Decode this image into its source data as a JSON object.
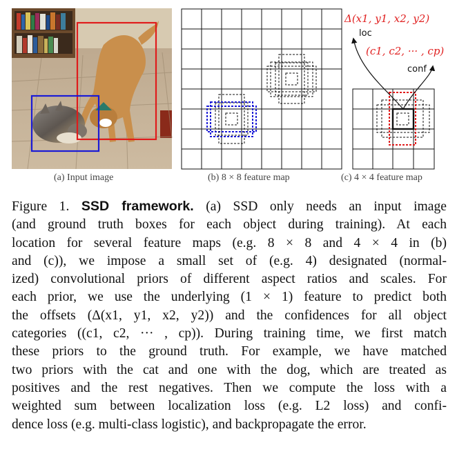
{
  "subfigures": {
    "a_caption": "(a) Input image",
    "b_caption": "(b) 8 × 8 feature map",
    "c_caption": "(c) 4 × 4 feature map"
  },
  "annotations": {
    "offsets": "Δ(x1, y1, x2, y2)",
    "loc": "loc",
    "confidences": "(c1, c2, ··· , cp)",
    "conf": "conf"
  },
  "colors": {
    "ground_truth_cat": "#1a1ad6",
    "ground_truth_dog": "#e01b1b",
    "math_red": "#e02020"
  },
  "grids": {
    "b_cells": 8,
    "c_cells": 4
  },
  "caption": {
    "label": "Figure 1.",
    "title": "SSD framework.",
    "lines": [
      "(a) SSD only needs an input image",
      "(and ground truth boxes for each object during training). At each",
      "location for several feature maps (e.g. 8 × 8 and 4 × 4 in (b)",
      "and (c)), we impose a small set of (e.g. 4) designated (normal-",
      "ized) convolutional priors of different aspect ratios and scales. For",
      "each prior, we use the underlying (1 × 1) feature to predict both",
      "the offsets (Δ(x1, y1, x2, y2)) and the confidences for all object",
      "categories ((c1, c2, ··· , cp)). During training time, we first match",
      "these priors to the ground truth. For example, we have matched",
      "two priors with the cat and one with the dog, which are treated as",
      "positives and the rest negatives. Then we compute the loss with a",
      "weighted sum between localization loss (e.g. L2 loss) and confi-",
      "dence loss (e.g. multi-class logistic), and backpropagate the error."
    ]
  }
}
